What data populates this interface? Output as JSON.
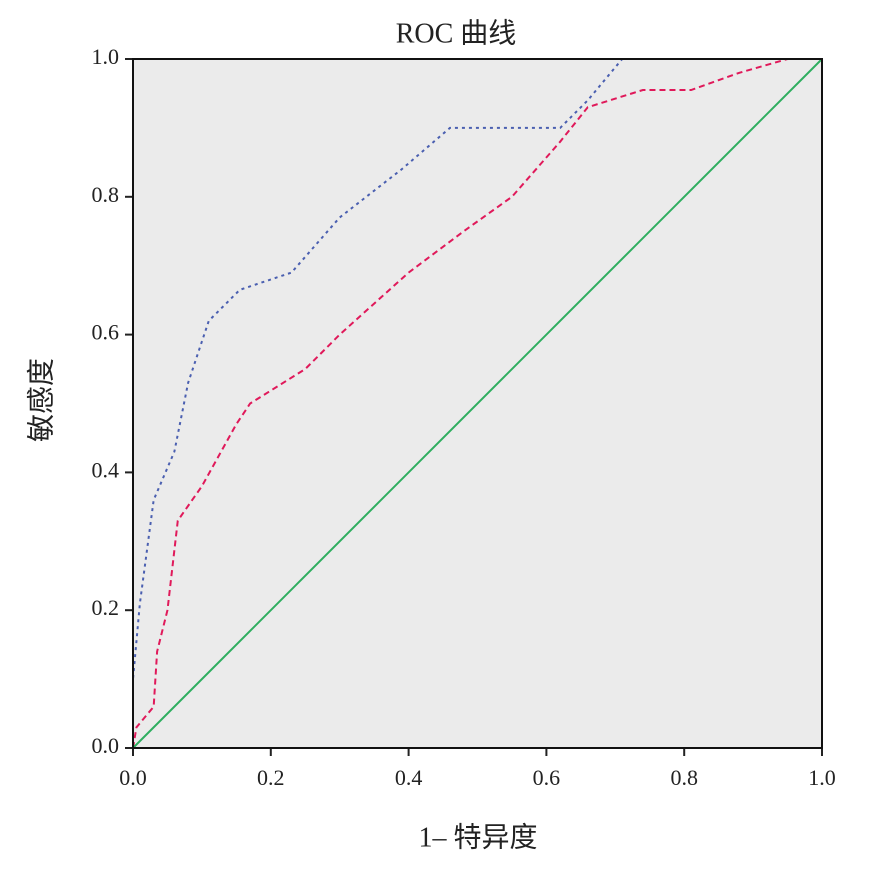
{
  "chart_data": {
    "type": "line",
    "title": "ROC 曲线",
    "x_label": "1– 特异度",
    "y_label": "敏感度",
    "xlim": [
      0,
      1
    ],
    "ylim": [
      0,
      1
    ],
    "xticks": [
      {
        "value": 0,
        "label": "0.0"
      },
      0.2,
      0.4,
      0.6,
      0.8,
      {
        "value": 1,
        "label": "1.0"
      }
    ],
    "yticks": [
      {
        "value": 0,
        "label": "0.0"
      },
      0.2,
      0.4,
      0.6,
      0.8,
      {
        "value": 1,
        "label": "1.0"
      }
    ],
    "series": [
      {
        "color": "#4a5fb0",
        "dash": "3,4",
        "x": [
          0,
          0,
          0.01,
          0.03,
          0.06,
          0.08,
          0.11,
          0.155,
          0.23,
          0.3,
          0.39,
          0.46,
          0.62,
          0.66,
          0.71,
          1
        ],
        "values": [
          0,
          0.1,
          0.21,
          0.36,
          0.43,
          0.53,
          0.62,
          0.665,
          0.69,
          0.77,
          0.84,
          0.9,
          0.9,
          0.94,
          1,
          1
        ]
      },
      {
        "color": "#e0195a",
        "dash": "6,4",
        "x": [
          0,
          0.005,
          0.03,
          0.035,
          0.05,
          0.065,
          0.1,
          0.15,
          0.17,
          0.25,
          0.3,
          0.4,
          0.48,
          0.55,
          0.62,
          0.66,
          0.74,
          0.81,
          0.88,
          0.95,
          1
        ],
        "values": [
          0,
          0.03,
          0.06,
          0.14,
          0.2,
          0.33,
          0.38,
          0.47,
          0.5,
          0.55,
          0.6,
          0.69,
          0.75,
          0.8,
          0.88,
          0.93,
          0.955,
          0.955,
          0.98,
          1,
          1
        ]
      },
      {
        "color": "#2fae60",
        "dash": "",
        "x": [
          0,
          1
        ],
        "values": [
          0,
          1
        ]
      }
    ]
  }
}
